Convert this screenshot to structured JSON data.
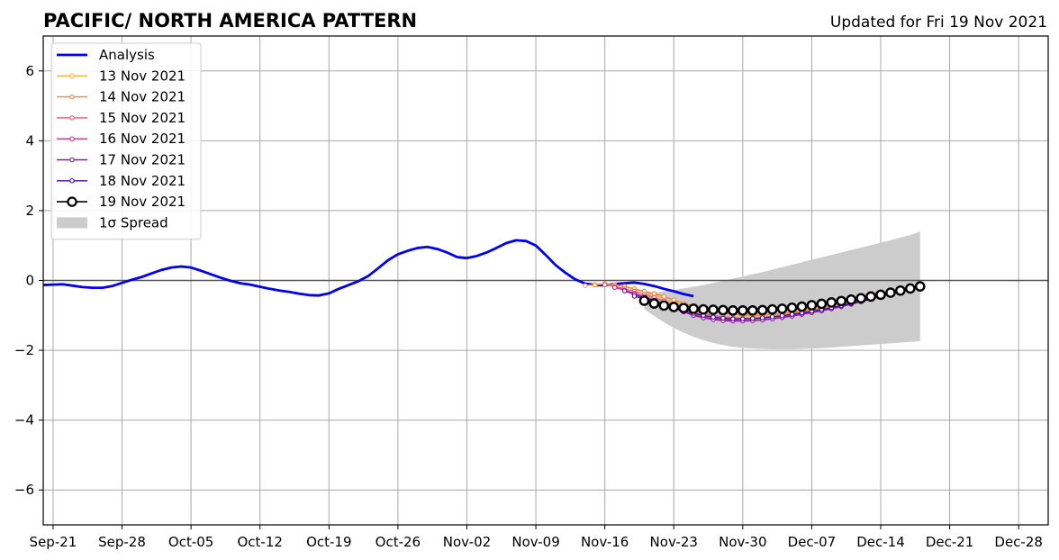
{
  "chart_data": {
    "type": "line",
    "title": "PACIFIC/ NORTH AMERICA PATTERN",
    "subtitle": "Updated for Fri 19 Nov 2021",
    "xlabel": "",
    "ylabel": "",
    "ylim": [
      -7,
      7
    ],
    "yticks": [
      -6,
      -4,
      -2,
      0,
      2,
      4,
      6
    ],
    "ytick_labels": [
      "−6",
      "−4",
      "−2",
      "0",
      "2",
      "4",
      "6"
    ],
    "x_start_date": "2021-09-20",
    "x_end_date": "2021-12-31",
    "xticks": [
      "2021-09-21",
      "2021-09-28",
      "2021-10-05",
      "2021-10-12",
      "2021-10-19",
      "2021-10-26",
      "2021-11-02",
      "2021-11-09",
      "2021-11-16",
      "2021-11-23",
      "2021-11-30",
      "2021-12-07",
      "2021-12-14",
      "2021-12-21",
      "2021-12-28"
    ],
    "xtick_labels": [
      "Sep-21",
      "Sep-28",
      "Oct-05",
      "Oct-12",
      "Oct-19",
      "Oct-26",
      "Nov-02",
      "Nov-09",
      "Nov-16",
      "Nov-23",
      "Nov-30",
      "Dec-07",
      "Dec-14",
      "Dec-21",
      "Dec-28"
    ],
    "grid": true,
    "legend_position": "top-left",
    "zero_line": true,
    "series": [
      {
        "name": "Analysis",
        "kind": "analysis",
        "color": "#0000ee",
        "start_date": "2021-09-20",
        "values": [
          -0.13,
          -0.12,
          -0.11,
          -0.15,
          -0.19,
          -0.21,
          -0.21,
          -0.16,
          -0.07,
          0.02,
          0.1,
          0.2,
          0.3,
          0.37,
          0.4,
          0.37,
          0.28,
          0.18,
          0.08,
          -0.01,
          -0.08,
          -0.12,
          -0.18,
          -0.24,
          -0.29,
          -0.33,
          -0.38,
          -0.42,
          -0.43,
          -0.37,
          -0.24,
          -0.13,
          -0.02,
          0.13,
          0.35,
          0.58,
          0.75,
          0.85,
          0.93,
          0.96,
          0.9,
          0.8,
          0.67,
          0.64,
          0.7,
          0.8,
          0.93,
          1.07,
          1.15,
          1.13,
          1.0,
          0.73,
          0.44,
          0.22,
          0.03,
          -0.09,
          -0.13,
          -0.14,
          -0.1,
          -0.08,
          -0.06,
          -0.1,
          -0.16,
          -0.24,
          -0.31,
          -0.39,
          -0.45
        ]
      },
      {
        "name": "13 Nov 2021",
        "kind": "forecast",
        "color": "#fdb042",
        "start_date": "2021-11-14",
        "values": [
          -0.15,
          -0.12,
          -0.1,
          -0.13,
          -0.18,
          -0.25,
          -0.33,
          -0.42,
          -0.52,
          -0.62,
          -0.72,
          -0.8,
          -0.87,
          -0.9,
          -0.93,
          -0.95,
          -0.96,
          -0.96,
          -0.95,
          -0.94,
          -0.92,
          -0.89,
          -0.86,
          -0.82,
          -0.77,
          -0.72,
          -0.66,
          -0.59,
          -0.51,
          -0.42,
          -0.33
        ]
      },
      {
        "name": "14 Nov 2021",
        "kind": "forecast",
        "color": "#ee8a3c",
        "start_date": "2021-11-15",
        "values": [
          -0.13,
          -0.1,
          -0.12,
          -0.17,
          -0.24,
          -0.31,
          -0.38,
          -0.46,
          -0.56,
          -0.65,
          -0.74,
          -0.82,
          -0.88,
          -0.93,
          -0.97,
          -0.99,
          -1.0,
          -1.0,
          -0.98,
          -0.96,
          -0.93,
          -0.89,
          -0.85,
          -0.8,
          -0.73,
          -0.66,
          -0.58,
          -0.49,
          -0.4,
          -0.32
        ]
      },
      {
        "name": "15 Nov 2021",
        "kind": "forecast",
        "color": "#e35e6a",
        "start_date": "2021-11-16",
        "values": [
          -0.12,
          -0.17,
          -0.24,
          -0.31,
          -0.4,
          -0.49,
          -0.59,
          -0.69,
          -0.79,
          -0.88,
          -0.95,
          -1.0,
          -1.04,
          -1.07,
          -1.08,
          -1.08,
          -1.07,
          -1.05,
          -1.02,
          -0.99,
          -0.95,
          -0.9,
          -0.85,
          -0.79,
          -0.72,
          -0.64,
          -0.55
        ]
      },
      {
        "name": "16 Nov 2021",
        "kind": "forecast",
        "color": "#c2328e",
        "start_date": "2021-11-17",
        "values": [
          -0.2,
          -0.28,
          -0.37,
          -0.46,
          -0.56,
          -0.66,
          -0.77,
          -0.88,
          -0.97,
          -1.04,
          -1.09,
          -1.12,
          -1.14,
          -1.15,
          -1.14,
          -1.12,
          -1.09,
          -1.06,
          -1.02,
          -0.97,
          -0.92,
          -0.87,
          -0.81,
          -0.75,
          -0.68,
          -0.6,
          -0.51
        ]
      },
      {
        "name": "17 Nov 2021",
        "kind": "forecast",
        "color": "#8e15a8",
        "start_date": "2021-11-18",
        "values": [
          -0.3,
          -0.4,
          -0.49,
          -0.58,
          -0.68,
          -0.79,
          -0.9,
          -1.0,
          -1.07,
          -1.12,
          -1.15,
          -1.16,
          -1.16,
          -1.15,
          -1.13,
          -1.1,
          -1.06,
          -1.02,
          -0.97,
          -0.92,
          -0.87,
          -0.81,
          -0.75,
          -0.68,
          -0.61,
          -0.53,
          -0.45,
          -0.37
        ]
      },
      {
        "name": "18 Nov 2021",
        "kind": "forecast",
        "color": "#4a0c99",
        "start_date": "2021-11-19",
        "values": [
          -0.45,
          -0.52,
          -0.6,
          -0.68,
          -0.77,
          -0.86,
          -0.94,
          -1.0,
          -1.05,
          -1.08,
          -1.1,
          -1.1,
          -1.09,
          -1.07,
          -1.04,
          -1.01,
          -0.97,
          -0.93,
          -0.88,
          -0.83,
          -0.78,
          -0.72,
          -0.66,
          -0.6,
          -0.53,
          -0.46,
          -0.39,
          -0.33
        ]
      },
      {
        "name": "19 Nov 2021",
        "kind": "current",
        "color": "#000000",
        "start_date": "2021-11-20",
        "values": [
          -0.58,
          -0.66,
          -0.72,
          -0.76,
          -0.79,
          -0.81,
          -0.83,
          -0.84,
          -0.85,
          -0.86,
          -0.86,
          -0.86,
          -0.85,
          -0.83,
          -0.81,
          -0.78,
          -0.75,
          -0.71,
          -0.67,
          -0.63,
          -0.59,
          -0.55,
          -0.51,
          -0.46,
          -0.41,
          -0.35,
          -0.29,
          -0.23,
          -0.17
        ]
      }
    ],
    "spread": {
      "name": "1σ Spread",
      "color": "#cccccc",
      "start_date": "2021-11-20",
      "upper": [
        -0.38,
        -0.35,
        -0.31,
        -0.27,
        -0.23,
        -0.18,
        -0.13,
        -0.07,
        -0.01,
        0.05,
        0.11,
        0.18,
        0.24,
        0.31,
        0.38,
        0.45,
        0.52,
        0.59,
        0.66,
        0.73,
        0.8,
        0.87,
        0.94,
        1.01,
        1.08,
        1.15,
        1.23,
        1.3,
        1.4
      ],
      "lower": [
        -0.82,
        -1.02,
        -1.2,
        -1.36,
        -1.5,
        -1.61,
        -1.71,
        -1.79,
        -1.85,
        -1.9,
        -1.93,
        -1.95,
        -1.96,
        -1.97,
        -1.97,
        -1.97,
        -1.96,
        -1.95,
        -1.94,
        -1.92,
        -1.9,
        -1.88,
        -1.86,
        -1.84,
        -1.82,
        -1.8,
        -1.78,
        -1.76,
        -1.74
      ]
    }
  }
}
